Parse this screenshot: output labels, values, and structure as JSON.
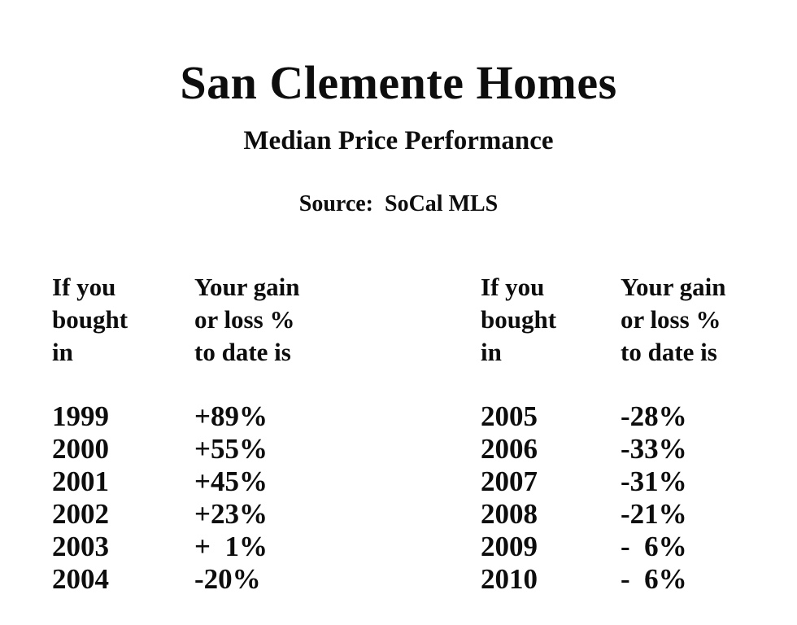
{
  "page": {
    "title": "San Clemente Homes",
    "subtitle": "Median Price Performance",
    "source": "Source:  SoCal MLS"
  },
  "tables": [
    {
      "year_header": "If you\nbought\nin",
      "gain_header": "Your gain\nor loss %\nto date is",
      "rows": [
        {
          "year": "1999",
          "gain": "+89%"
        },
        {
          "year": "2000",
          "gain": "+55%"
        },
        {
          "year": "2001",
          "gain": "+45%"
        },
        {
          "year": "2002",
          "gain": "+23%"
        },
        {
          "year": "2003",
          "gain": "+  1%"
        },
        {
          "year": "2004",
          "gain": "-20%"
        }
      ]
    },
    {
      "year_header": "If you\nbought\nin",
      "gain_header": "Your gain\nor loss %\nto date is",
      "rows": [
        {
          "year": "2005",
          "gain": "-28%"
        },
        {
          "year": "2006",
          "gain": "-33%"
        },
        {
          "year": "2007",
          "gain": "-31%"
        },
        {
          "year": "2008",
          "gain": "-21%"
        },
        {
          "year": "2009",
          "gain": "-  6%"
        },
        {
          "year": "2010",
          "gain": "-  6%"
        }
      ]
    }
  ],
  "chart_data": {
    "type": "table",
    "title": "San Clemente Homes",
    "subtitle": "Median Price Performance",
    "source": "SoCal MLS",
    "columns": [
      "If you bought in",
      "Your gain or loss % to date is"
    ],
    "years": [
      1999,
      2000,
      2001,
      2002,
      2003,
      2004,
      2005,
      2006,
      2007,
      2008,
      2009,
      2010
    ],
    "gain_loss_pct": [
      89,
      55,
      45,
      23,
      1,
      -20,
      -28,
      -33,
      -31,
      -21,
      -6,
      -6
    ]
  }
}
